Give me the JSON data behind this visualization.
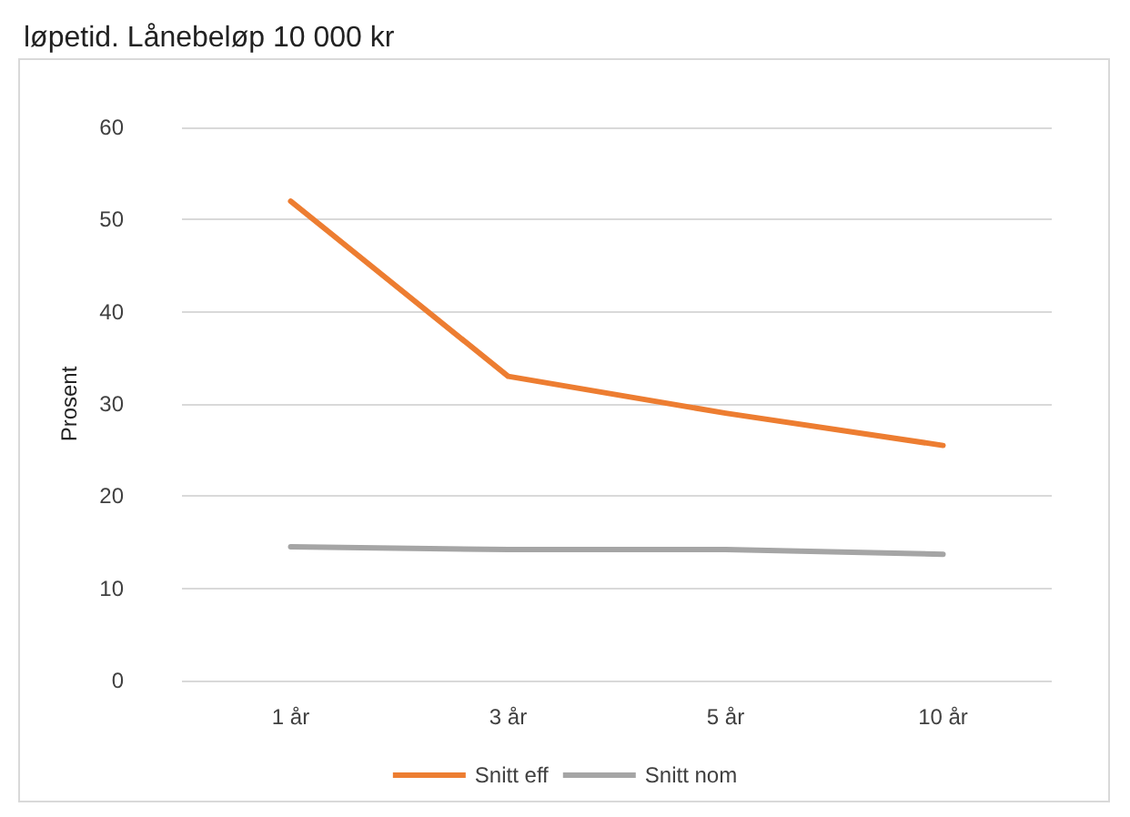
{
  "chart_data": {
    "type": "line",
    "title": "løpetid. Lånebeløp 10 000 kr",
    "ylabel": "Prosent",
    "categories": [
      "1 år",
      "3 år",
      "5 år",
      "10 år"
    ],
    "series": [
      {
        "name": "Snitt eff",
        "color": "#ed7d31",
        "values": [
          52,
          33,
          29,
          25.5
        ]
      },
      {
        "name": "Snitt nom",
        "color": "#a5a5a5",
        "values": [
          14.5,
          14.2,
          14.2,
          13.7
        ]
      }
    ],
    "ylim": [
      0,
      60
    ],
    "yticks": [
      0,
      10,
      20,
      30,
      40,
      50,
      60
    ],
    "grid": "y",
    "legend": "bottom",
    "marker": "none",
    "line_style": "solid"
  }
}
